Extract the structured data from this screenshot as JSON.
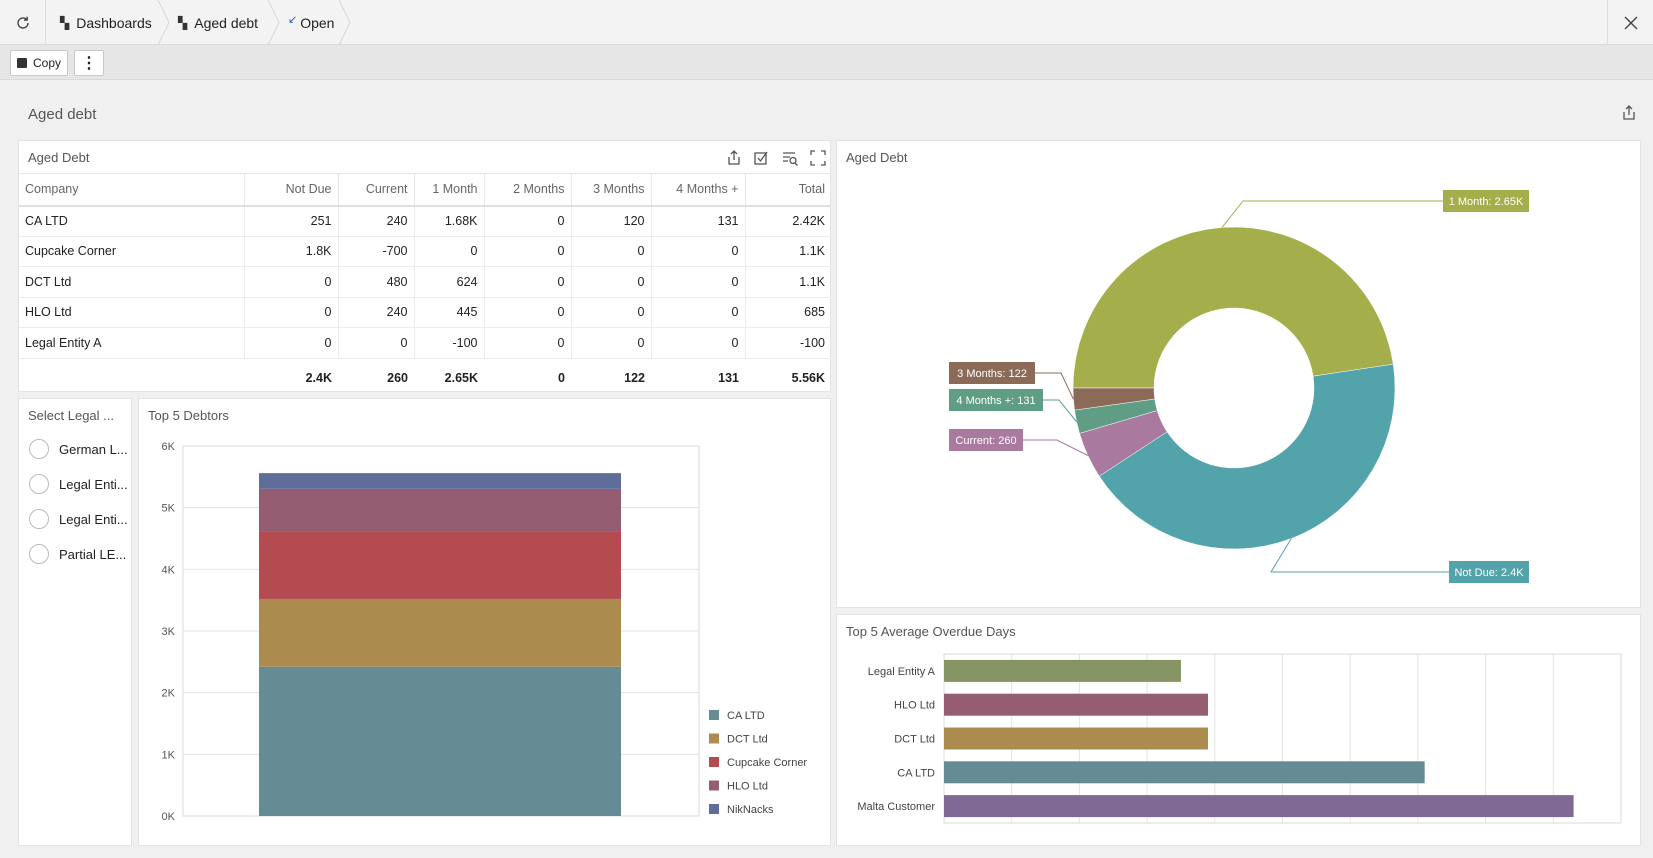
{
  "nav": {
    "crumbs": [
      {
        "label": "Dashboards"
      },
      {
        "label": "Aged debt"
      },
      {
        "label": "Open"
      }
    ]
  },
  "toolbar": {
    "copy_label": "Copy",
    "more_label": "⋮"
  },
  "dashboard": {
    "title": "Aged debt"
  },
  "table_panel": {
    "title": "Aged Debt",
    "columns": [
      "Company",
      "Not Due",
      "Current",
      "1 Month",
      "2 Months",
      "3 Months",
      "4 Months +",
      "Total"
    ],
    "rows": [
      [
        "CA LTD",
        "251",
        "240",
        "1.68K",
        "0",
        "120",
        "131",
        "2.42K"
      ],
      [
        "Cupcake Corner",
        "1.8K",
        "-700",
        "0",
        "0",
        "0",
        "0",
        "1.1K"
      ],
      [
        "DCT Ltd",
        "0",
        "480",
        "624",
        "0",
        "0",
        "0",
        "1.1K"
      ],
      [
        "HLO Ltd",
        "0",
        "240",
        "445",
        "0",
        "0",
        "0",
        "685"
      ],
      [
        "Legal Entity A",
        "0",
        "0",
        "-100",
        "0",
        "0",
        "0",
        "-100"
      ]
    ],
    "totals": [
      "",
      "2.4K",
      "260",
      "2.65K",
      "0",
      "122",
      "131",
      "5.56K"
    ]
  },
  "filter_panel": {
    "title": "Select Legal ...",
    "items": [
      "German L...",
      "Legal Enti...",
      "Legal Enti...",
      "Partial LE..."
    ]
  },
  "colors": {
    "ca_ltd": "#658c94",
    "dct_ltd": "#ab8c4e",
    "cupcake": "#b34b50",
    "hlo": "#945d72",
    "niknacks": "#5f6d9b",
    "one_month": "#a4ae4a",
    "not_due": "#53a3ab",
    "three_months": "#8b6a58",
    "four_months": "#5f9d85",
    "current": "#a979a0",
    "legal_entity_a_bar": "#879564",
    "malta_bar": "#806a94"
  },
  "chart_data": [
    {
      "id": "top5debtors",
      "type": "bar",
      "title": "Top 5 Debtors",
      "stacked": true,
      "categories": [
        ""
      ],
      "ylim": [
        0,
        6000
      ],
      "yticks": [
        "0K",
        "1K",
        "2K",
        "3K",
        "4K",
        "5K",
        "6K"
      ],
      "series": [
        {
          "name": "CA LTD",
          "values": [
            2420
          ]
        },
        {
          "name": "DCT Ltd",
          "values": [
            1100
          ]
        },
        {
          "name": "Cupcake Corner",
          "values": [
            1100
          ]
        },
        {
          "name": "HLO Ltd",
          "values": [
            685
          ]
        },
        {
          "name": "NikNacks",
          "values": [
            255
          ]
        }
      ],
      "legend": "right"
    },
    {
      "id": "ageddebt_donut",
      "type": "pie",
      "title": "Aged Debt",
      "donut": true,
      "slices": [
        {
          "label": "1 Month",
          "value": 2650,
          "display": "1 Month: 2.65K"
        },
        {
          "label": "Not Due",
          "value": 2400,
          "display": "Not Due: 2.4K"
        },
        {
          "label": "Current",
          "value": 260,
          "display": "Current: 260"
        },
        {
          "label": "4 Months +",
          "value": 131,
          "display": "4 Months +: 131"
        },
        {
          "label": "3 Months",
          "value": 122,
          "display": "3 Months: 122"
        }
      ]
    },
    {
      "id": "overdue_days",
      "type": "bar",
      "orientation": "horizontal",
      "title": "Top 5 Average Overdue Days",
      "categories": [
        "Legal Entity A",
        "HLO Ltd",
        "DCT Ltd",
        "CA LTD",
        "Malta Customer"
      ],
      "values": [
        35,
        39,
        39,
        71,
        93
      ],
      "xlim": [
        0,
        100
      ],
      "grid": true
    }
  ]
}
